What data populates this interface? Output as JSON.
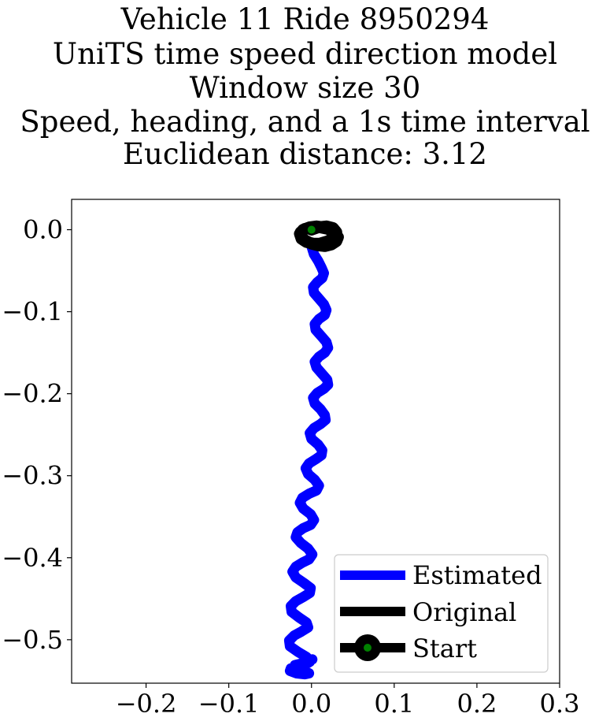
{
  "chart_data": {
    "type": "line",
    "title_lines": [
      "Vehicle 11 Ride 8950294",
      "UniTS time speed direction model",
      "Window size 30",
      "Speed, heading, and a 1s time interval",
      "Euclidean distance: 3.12"
    ],
    "xlabel": "",
    "ylabel": "",
    "xlim": [
      -0.29,
      0.3
    ],
    "ylim": [
      -0.553,
      0.037
    ],
    "x_ticks": [
      -0.2,
      -0.1,
      0.0,
      0.1,
      0.2,
      0.3
    ],
    "x_tick_labels": [
      "−0.2",
      "−0.1",
      "0.0",
      "0.1",
      "0.2",
      "0.3"
    ],
    "y_ticks": [
      0.0,
      -0.1,
      -0.2,
      -0.3,
      -0.4,
      -0.5
    ],
    "y_tick_labels": [
      "0.0",
      "−0.1",
      "−0.2",
      "−0.3",
      "−0.4",
      "−0.5"
    ],
    "grid": false,
    "legend_position": "lower-right",
    "series": [
      {
        "name": "Estimated",
        "color": "#0000ff",
        "x": [
          0.0,
          0.003,
          0.008,
          0.012,
          0.015,
          0.013,
          0.007,
          0.002,
          0.003,
          0.009,
          0.015,
          0.018,
          0.016,
          0.009,
          0.004,
          0.005,
          0.012,
          0.018,
          0.02,
          0.016,
          0.009,
          0.004,
          0.006,
          0.013,
          0.019,
          0.02,
          0.015,
          0.007,
          0.002,
          0.004,
          0.011,
          0.016,
          0.017,
          0.011,
          0.003,
          -0.002,
          0.0,
          0.008,
          0.013,
          0.012,
          0.005,
          -0.003,
          -0.007,
          -0.004,
          0.004,
          0.009,
          0.006,
          -0.003,
          -0.011,
          -0.014,
          -0.01,
          -0.001,
          0.003,
          -0.001,
          -0.01,
          -0.017,
          -0.019,
          -0.013,
          -0.004,
          0.001,
          -0.003,
          -0.011,
          -0.019,
          -0.023,
          -0.019,
          -0.009,
          -0.001,
          -0.002,
          -0.01,
          -0.019,
          -0.025,
          -0.024,
          -0.015,
          -0.006,
          -0.004,
          -0.012,
          -0.021,
          -0.027,
          -0.026,
          -0.016,
          -0.006,
          -0.002,
          -0.008,
          -0.018,
          -0.025,
          -0.026,
          -0.018,
          -0.008,
          -0.003,
          -0.007,
          -0.015,
          -0.021,
          -0.02,
          -0.012,
          -0.004,
          0.001
        ],
        "y": [
          -0.02,
          -0.03,
          -0.038,
          -0.046,
          -0.053,
          -0.059,
          -0.064,
          -0.07,
          -0.077,
          -0.084,
          -0.091,
          -0.098,
          -0.104,
          -0.109,
          -0.115,
          -0.122,
          -0.13,
          -0.137,
          -0.144,
          -0.15,
          -0.155,
          -0.161,
          -0.168,
          -0.176,
          -0.183,
          -0.189,
          -0.194,
          -0.199,
          -0.205,
          -0.212,
          -0.219,
          -0.226,
          -0.232,
          -0.237,
          -0.242,
          -0.248,
          -0.255,
          -0.262,
          -0.269,
          -0.275,
          -0.28,
          -0.285,
          -0.291,
          -0.298,
          -0.305,
          -0.312,
          -0.318,
          -0.322,
          -0.327,
          -0.333,
          -0.34,
          -0.347,
          -0.354,
          -0.36,
          -0.364,
          -0.369,
          -0.375,
          -0.382,
          -0.389,
          -0.396,
          -0.402,
          -0.406,
          -0.411,
          -0.417,
          -0.424,
          -0.431,
          -0.437,
          -0.443,
          -0.448,
          -0.453,
          -0.459,
          -0.466,
          -0.473,
          -0.479,
          -0.485,
          -0.49,
          -0.495,
          -0.501,
          -0.508,
          -0.515,
          -0.521,
          -0.527,
          -0.531,
          -0.533,
          -0.535,
          -0.538,
          -0.541,
          -0.542,
          -0.541,
          -0.539,
          -0.537,
          -0.534,
          -0.531,
          -0.529,
          -0.527,
          -0.524
        ]
      },
      {
        "name": "Original",
        "color": "#000000",
        "x": [
          0.0,
          0.008,
          0.018,
          0.026,
          0.03,
          0.028,
          0.02,
          0.01,
          0.002,
          -0.006,
          -0.012,
          -0.014,
          -0.01,
          -0.002,
          0.006,
          0.014,
          0.022,
          0.028,
          0.032,
          0.03,
          0.024,
          0.016,
          0.008,
          0.0,
          -0.008,
          -0.013,
          -0.013,
          -0.008,
          0.0,
          0.01,
          0.02,
          0.027,
          0.031,
          0.029,
          0.022,
          0.012
        ],
        "y": [
          0.0,
          0.003,
          0.004,
          0.002,
          -0.003,
          -0.009,
          -0.014,
          -0.017,
          -0.017,
          -0.015,
          -0.011,
          -0.005,
          0.0,
          0.003,
          0.004,
          0.003,
          0.0,
          -0.004,
          -0.009,
          -0.014,
          -0.018,
          -0.02,
          -0.019,
          -0.017,
          -0.013,
          -0.008,
          -0.003,
          0.001,
          0.003,
          0.003,
          0.001,
          -0.003,
          -0.008,
          -0.013,
          -0.017,
          -0.018
        ]
      }
    ],
    "start_point": {
      "name": "Start",
      "x": 0.0,
      "y": 0.0,
      "color": "#008000",
      "edge_color": "#000000"
    },
    "legend": [
      "Estimated",
      "Original",
      "Start"
    ]
  }
}
